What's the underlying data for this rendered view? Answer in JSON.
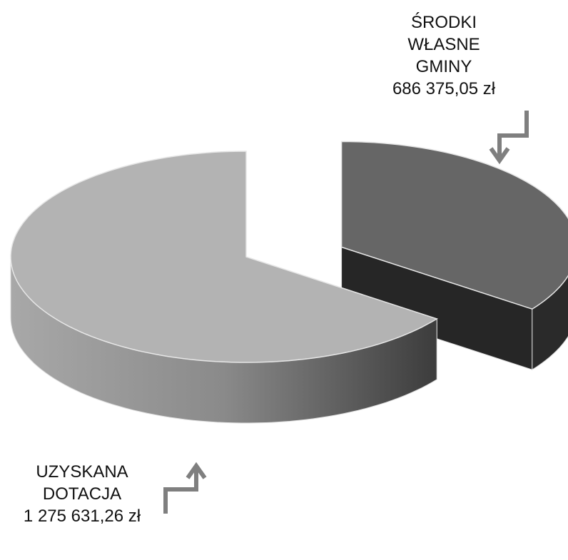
{
  "chart_data": {
    "type": "pie",
    "categories": [
      "ŚRODKI WŁASNE GMINY",
      "UZYSKANA DOTACJA"
    ],
    "values": [
      686375.05,
      1275631.26
    ],
    "value_labels": [
      "686 375,05 zł",
      "1 275 631,26 zł"
    ],
    "colors": [
      "#666666",
      "#b3b3b3"
    ],
    "three_d": true,
    "exploded": [
      true,
      false
    ]
  }
}
